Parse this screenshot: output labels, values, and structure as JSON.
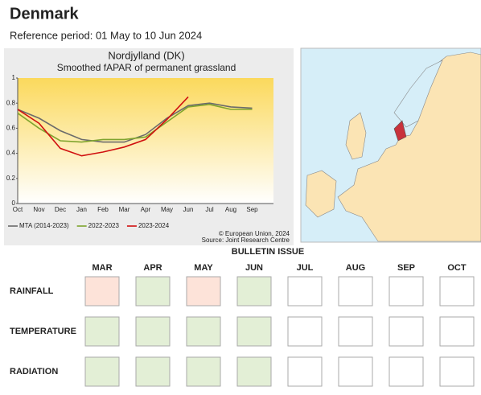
{
  "header": {
    "title": "Denmark",
    "subtitle": "Reference period: 01 May to 10 Jun 2024"
  },
  "chart_data": {
    "type": "line",
    "title": "Nordjylland (DK)",
    "subtitle": "Smoothed fAPAR of permanent grassland",
    "categories": [
      "Oct",
      "Nov",
      "Dec",
      "Jan",
      "Feb",
      "Mar",
      "Apr",
      "May",
      "Jun",
      "Jul",
      "Aug",
      "Sep"
    ],
    "series": [
      {
        "name": "MTA (2014-2023)",
        "color": "#6b6b6b",
        "values": [
          0.75,
          0.68,
          0.58,
          0.51,
          0.49,
          0.49,
          0.55,
          0.68,
          0.78,
          0.8,
          0.77,
          0.76
        ]
      },
      {
        "name": "2022-2023",
        "color": "#7fa42e",
        "values": [
          0.72,
          0.6,
          0.5,
          0.49,
          0.51,
          0.51,
          0.53,
          0.65,
          0.77,
          0.79,
          0.75,
          0.75
        ]
      },
      {
        "name": "2023-2024",
        "color": "#d01010",
        "values": [
          0.75,
          0.64,
          0.44,
          0.38,
          0.41,
          0.45,
          0.51,
          0.67,
          0.85,
          null,
          null,
          null
        ]
      }
    ],
    "ylim": [
      0,
      1
    ],
    "yticks": [
      0,
      0.2,
      0.4,
      0.6,
      0.8,
      1
    ],
    "legend": "bottom",
    "credits": [
      "© European Union, 2024",
      "Source: Joint Research Centre"
    ]
  },
  "bulletin": {
    "title": "BULLETIN ISSUE",
    "months": [
      "MAR",
      "APR",
      "MAY",
      "JUN",
      "JUL",
      "AUG",
      "SEP",
      "OCT"
    ],
    "rows": [
      {
        "label": "RAINFALL",
        "colors": [
          "#fde3d9",
          "#e3efd6",
          "#fde3d9",
          "#e3efd6",
          "#ffffff",
          "#ffffff",
          "#ffffff",
          "#ffffff"
        ]
      },
      {
        "label": "TEMPERATURE",
        "colors": [
          "#e3efd6",
          "#e3efd6",
          "#e3efd6",
          "#e3efd6",
          "#ffffff",
          "#ffffff",
          "#ffffff",
          "#ffffff"
        ]
      },
      {
        "label": "RADIATION",
        "colors": [
          "#e3efd6",
          "#e3efd6",
          "#e3efd6",
          "#e3efd6",
          "#ffffff",
          "#ffffff",
          "#ffffff",
          "#ffffff"
        ]
      }
    ]
  }
}
